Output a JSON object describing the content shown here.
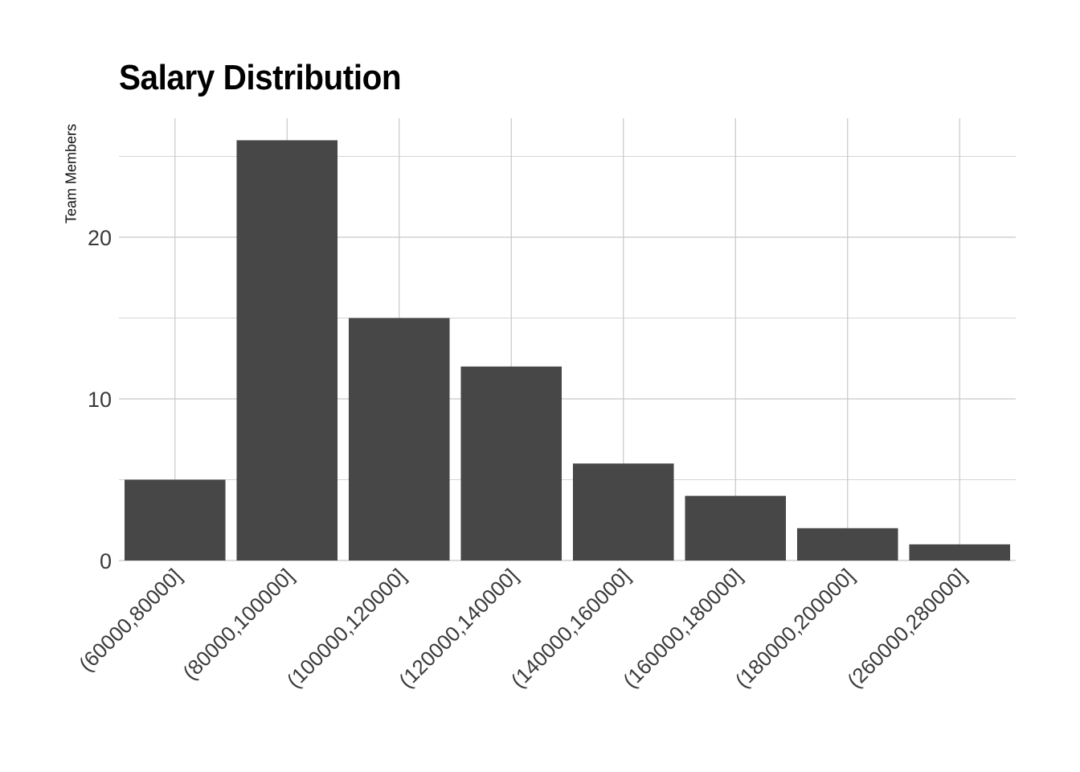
{
  "chart_data": {
    "type": "bar",
    "title": "Salary Distribution",
    "xlabel": "",
    "ylabel": "Team Members",
    "categories": [
      "(60000,80000]",
      "(80000,100000]",
      "(100000,120000]",
      "(120000,140000]",
      "(140000,160000]",
      "(160000,180000]",
      "(180000,200000]",
      "(260000,280000]"
    ],
    "values": [
      5,
      26,
      15,
      12,
      6,
      4,
      2,
      1
    ],
    "ylim": [
      0,
      27.3
    ],
    "yticks": [
      0,
      10,
      20
    ],
    "grid": true,
    "legend": "none",
    "bar_color": "#474747",
    "grid_color": "#c8c8c8"
  }
}
